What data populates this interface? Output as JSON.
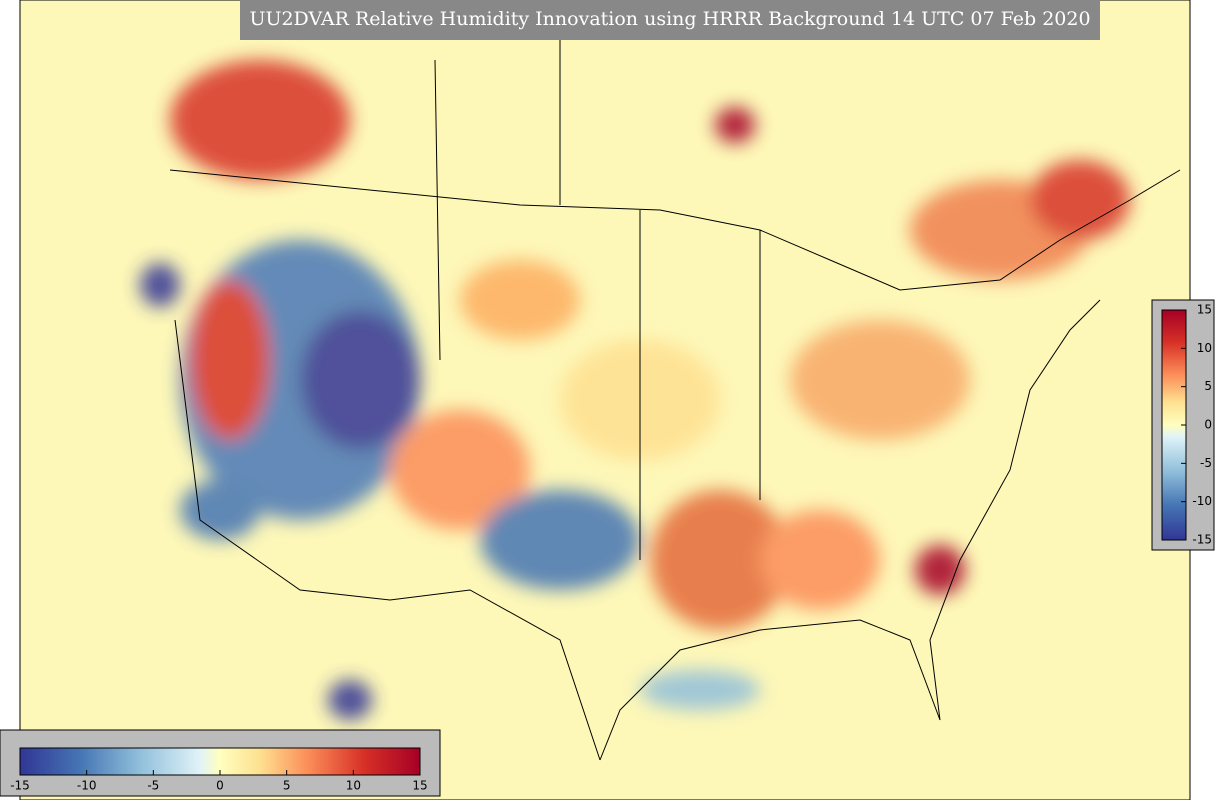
{
  "title": "UU2DVAR Relative Humidity Innovation using HRRR Background 14 UTC 07 Feb 2020",
  "colorbars": [
    {
      "orientation": "horizontal",
      "range": [
        -15,
        15
      ],
      "ticks": [
        -15,
        -10,
        -5,
        0,
        5,
        10,
        15
      ]
    },
    {
      "orientation": "vertical",
      "range": [
        -15,
        15
      ],
      "ticks": [
        -15,
        -10,
        -5,
        0,
        5,
        10,
        15
      ]
    }
  ]
}
